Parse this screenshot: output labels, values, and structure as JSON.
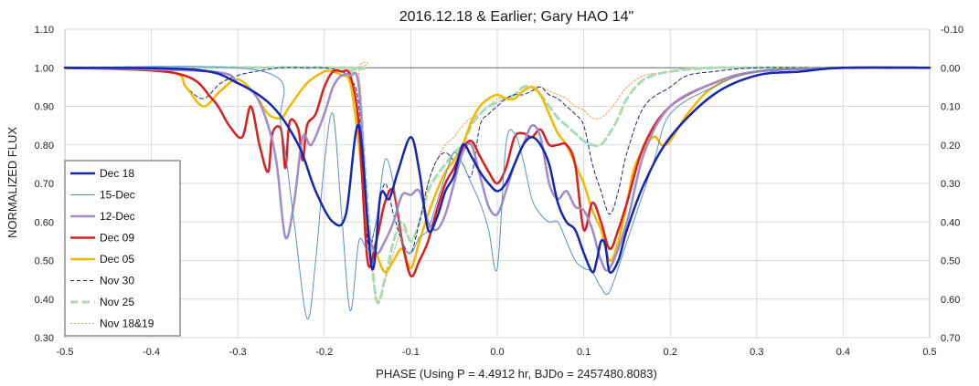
{
  "chart_data": {
    "type": "line",
    "title": "2016.12.18 & Earlier; Gary HAO 14\"",
    "xlabel": "PHASE (Using P = 4.4912 hr, BJDo = 2457480.8083)",
    "ylabel": "NORMALIZED FLUX",
    "xlim": [
      -0.5,
      0.5
    ],
    "ylim": [
      0.3,
      1.1
    ],
    "y2lim": [
      0.7,
      -0.1
    ],
    "x_ticks": [
      "-0.5",
      "-0.4",
      "-0.3",
      "-0.2",
      "-0.1",
      "0.0",
      "0.1",
      "0.2",
      "0.3",
      "0.4",
      "0.5"
    ],
    "y_ticks": [
      "0.30",
      "0.40",
      "0.50",
      "0.60",
      "0.70",
      "0.80",
      "0.90",
      "1.00",
      "1.10"
    ],
    "y2_ticks": [
      "0.70",
      "0.60",
      "0.50",
      "0.40",
      "0.30",
      "0.20",
      "0.10",
      "0.00",
      "-0.10"
    ],
    "reference_line": 1.0,
    "grid": "on",
    "legend_position": "left",
    "series": [
      {
        "name": "Dec 18",
        "color": "#1426b4",
        "width": 2.5,
        "dash": "",
        "x": [
          -0.5,
          -0.35,
          -0.3,
          -0.26,
          -0.23,
          -0.21,
          -0.19,
          -0.175,
          -0.16,
          -0.145,
          -0.135,
          -0.125,
          -0.115,
          -0.1,
          -0.09,
          -0.08,
          -0.07,
          -0.06,
          -0.05,
          -0.04,
          -0.03,
          -0.02,
          -0.01,
          0.0,
          0.01,
          0.02,
          0.03,
          0.04,
          0.05,
          0.06,
          0.07,
          0.08,
          0.09,
          0.1,
          0.11,
          0.115,
          0.12,
          0.125,
          0.13,
          0.14,
          0.15,
          0.17,
          0.2,
          0.25,
          0.3,
          0.35,
          0.4,
          0.5
        ],
        "y": [
          1.0,
          0.995,
          0.96,
          0.9,
          0.8,
          0.68,
          0.6,
          0.62,
          0.85,
          0.48,
          0.67,
          0.66,
          0.73,
          0.82,
          0.73,
          0.58,
          0.61,
          0.68,
          0.72,
          0.8,
          0.77,
          0.73,
          0.7,
          0.68,
          0.7,
          0.75,
          0.8,
          0.82,
          0.8,
          0.75,
          0.65,
          0.6,
          0.58,
          0.52,
          0.47,
          0.5,
          0.55,
          0.54,
          0.47,
          0.5,
          0.58,
          0.7,
          0.82,
          0.93,
          0.98,
          0.99,
          1.0,
          1.0
        ]
      },
      {
        "name": "15-Dec",
        "color": "#5b8fc9",
        "width": 1,
        "dash": "",
        "x": [
          -0.5,
          -0.27,
          -0.25,
          -0.235,
          -0.22,
          -0.21,
          -0.2,
          -0.19,
          -0.18,
          -0.17,
          -0.16,
          -0.15,
          -0.14,
          -0.13,
          -0.12,
          -0.11,
          -0.1,
          -0.09,
          -0.08,
          -0.07,
          -0.06,
          -0.05,
          -0.04,
          -0.03,
          -0.02,
          -0.01,
          0.0,
          0.01,
          0.02,
          0.03,
          0.04,
          0.05,
          0.06,
          0.07,
          0.08,
          0.09,
          0.1,
          0.11,
          0.12,
          0.13,
          0.15,
          0.18,
          0.2,
          0.25,
          0.3,
          0.4,
          0.5
        ],
        "y": [
          1.0,
          0.99,
          0.85,
          0.6,
          0.35,
          0.5,
          0.75,
          0.88,
          0.62,
          0.37,
          0.55,
          0.53,
          0.6,
          0.76,
          0.7,
          0.55,
          0.52,
          0.56,
          0.58,
          0.65,
          0.72,
          0.78,
          0.75,
          0.7,
          0.65,
          0.58,
          0.48,
          0.8,
          0.83,
          0.76,
          0.66,
          0.62,
          0.6,
          0.6,
          0.55,
          0.5,
          0.48,
          0.47,
          0.43,
          0.42,
          0.55,
          0.75,
          0.88,
          0.95,
          0.99,
          1.0,
          1.0
        ]
      },
      {
        "name": "12-Dec",
        "color": "#a08cc8",
        "width": 2.5,
        "dash": "",
        "x": [
          -0.5,
          -0.33,
          -0.3,
          -0.28,
          -0.265,
          -0.255,
          -0.245,
          -0.235,
          -0.225,
          -0.215,
          -0.2,
          -0.19,
          -0.18,
          -0.17,
          -0.16,
          -0.15,
          -0.14,
          -0.13,
          -0.12,
          -0.11,
          -0.1,
          -0.09,
          -0.08,
          -0.07,
          -0.06,
          -0.05,
          -0.04,
          -0.03,
          -0.02,
          -0.01,
          0.0,
          0.01,
          0.02,
          0.03,
          0.04,
          0.05,
          0.06,
          0.07,
          0.08,
          0.09,
          0.1,
          0.11,
          0.12,
          0.13,
          0.15,
          0.17,
          0.2,
          0.25,
          0.3,
          0.4,
          0.5
        ],
        "y": [
          1.0,
          0.99,
          0.96,
          0.93,
          0.85,
          0.75,
          0.56,
          0.65,
          0.82,
          0.8,
          0.88,
          0.95,
          0.98,
          0.98,
          0.95,
          0.6,
          0.52,
          0.55,
          0.6,
          0.67,
          0.67,
          0.68,
          0.6,
          0.58,
          0.62,
          0.7,
          0.78,
          0.8,
          0.72,
          0.64,
          0.62,
          0.68,
          0.75,
          0.8,
          0.85,
          0.82,
          0.7,
          0.66,
          0.68,
          0.64,
          0.63,
          0.58,
          0.5,
          0.48,
          0.6,
          0.78,
          0.9,
          0.96,
          0.99,
          1.0,
          1.0
        ]
      },
      {
        "name": "Dec 09",
        "color": "#dc1e1e",
        "width": 2.5,
        "dash": "",
        "x": [
          -0.5,
          -0.37,
          -0.33,
          -0.31,
          -0.295,
          -0.285,
          -0.275,
          -0.265,
          -0.26,
          -0.25,
          -0.245,
          -0.24,
          -0.23,
          -0.225,
          -0.22,
          -0.21,
          -0.2,
          -0.19,
          -0.18,
          -0.17,
          -0.16,
          -0.15,
          -0.14,
          -0.13,
          -0.12,
          -0.11,
          -0.1,
          -0.09,
          -0.08,
          -0.07,
          -0.06,
          -0.05,
          -0.04,
          -0.03,
          -0.02,
          -0.01,
          0.0,
          0.01,
          0.02,
          0.03,
          0.04,
          0.05,
          0.06,
          0.07,
          0.08,
          0.09,
          0.1,
          0.11,
          0.12,
          0.13,
          0.14,
          0.15,
          0.17,
          0.2,
          0.25,
          0.3,
          0.4,
          0.5
        ],
        "y": [
          1.0,
          0.985,
          0.92,
          0.85,
          0.82,
          0.9,
          0.8,
          0.73,
          0.83,
          0.84,
          0.74,
          0.86,
          0.84,
          0.76,
          0.85,
          0.88,
          0.95,
          0.99,
          0.99,
          0.98,
          0.85,
          0.5,
          0.55,
          0.65,
          0.68,
          0.55,
          0.46,
          0.5,
          0.55,
          0.63,
          0.7,
          0.74,
          0.79,
          0.81,
          0.77,
          0.73,
          0.7,
          0.74,
          0.82,
          0.83,
          0.82,
          0.84,
          0.8,
          0.8,
          0.8,
          0.75,
          0.58,
          0.65,
          0.6,
          0.53,
          0.58,
          0.65,
          0.8,
          0.9,
          0.96,
          0.99,
          1.0,
          1.0
        ]
      },
      {
        "name": "Dec 05",
        "color": "#f5b800",
        "width": 2.5,
        "dash": "",
        "x": [
          -0.5,
          -0.38,
          -0.36,
          -0.34,
          -0.32,
          -0.3,
          -0.28,
          -0.265,
          -0.25,
          -0.24,
          -0.22,
          -0.2,
          -0.19,
          -0.18,
          -0.17,
          -0.16,
          -0.15,
          -0.14,
          -0.13,
          -0.12,
          -0.11,
          -0.1,
          -0.09,
          -0.08,
          -0.07,
          -0.06,
          -0.05,
          -0.04,
          -0.03,
          -0.02,
          -0.01,
          0.0,
          0.01,
          0.02,
          0.03,
          0.04,
          0.05,
          0.06,
          0.07,
          0.08,
          0.09,
          0.1,
          0.11,
          0.12,
          0.13,
          0.14,
          0.15,
          0.16,
          0.18,
          0.19,
          0.2,
          0.22,
          0.25,
          0.3,
          0.4,
          0.5
        ],
        "y": [
          1.0,
          0.99,
          0.95,
          0.9,
          0.94,
          0.97,
          0.93,
          0.88,
          0.87,
          0.9,
          0.96,
          0.99,
          0.99,
          0.98,
          0.96,
          0.8,
          0.58,
          0.52,
          0.47,
          0.5,
          0.53,
          0.48,
          0.55,
          0.62,
          0.68,
          0.73,
          0.76,
          0.8,
          0.86,
          0.9,
          0.92,
          0.93,
          0.92,
          0.92,
          0.94,
          0.95,
          0.93,
          0.88,
          0.83,
          0.8,
          0.75,
          0.7,
          0.63,
          0.58,
          0.5,
          0.55,
          0.65,
          0.75,
          0.82,
          0.8,
          0.81,
          0.88,
          0.95,
          0.99,
          1.0,
          1.0
        ]
      },
      {
        "name": "Nov 30",
        "color": "#1a2a7a",
        "width": 1,
        "dash": "4,3",
        "x": [
          -0.5,
          -0.38,
          -0.36,
          -0.34,
          -0.32,
          -0.3,
          -0.28,
          -0.25,
          -0.22,
          -0.2,
          -0.18,
          -0.17,
          -0.16,
          -0.15,
          -0.14,
          -0.13,
          -0.12,
          -0.11,
          -0.1,
          -0.09,
          -0.08,
          -0.07,
          -0.06,
          -0.05,
          -0.04,
          -0.03,
          -0.02,
          -0.01,
          0.0,
          0.01,
          0.02,
          0.03,
          0.04,
          0.05,
          0.06,
          0.07,
          0.08,
          0.09,
          0.1,
          0.11,
          0.12,
          0.13,
          0.14,
          0.15,
          0.17,
          0.2,
          0.22,
          0.25,
          0.3,
          0.4,
          0.5
        ],
        "y": [
          1.0,
          0.99,
          0.95,
          0.92,
          0.96,
          0.98,
          0.99,
          1.0,
          1.0,
          1.0,
          0.99,
          0.97,
          0.9,
          0.55,
          0.6,
          0.7,
          0.62,
          0.55,
          0.52,
          0.6,
          0.7,
          0.76,
          0.78,
          0.76,
          0.75,
          0.72,
          0.85,
          0.88,
          0.9,
          0.92,
          0.93,
          0.93,
          0.94,
          0.95,
          0.93,
          0.92,
          0.9,
          0.88,
          0.85,
          0.75,
          0.68,
          0.62,
          0.68,
          0.78,
          0.9,
          0.95,
          0.98,
          0.99,
          1.0,
          1.0,
          1.0
        ]
      },
      {
        "name": "Nov 25",
        "color": "#a8dcb4",
        "width": 3,
        "dash": "8,5",
        "x": [
          -0.5,
          -0.18,
          -0.17,
          -0.16,
          -0.15,
          -0.14,
          -0.13,
          -0.12,
          -0.11,
          -0.1,
          -0.09,
          -0.08,
          -0.07,
          -0.06,
          -0.05,
          -0.04,
          -0.03,
          -0.02,
          -0.01,
          0.0,
          0.01,
          0.02,
          0.03,
          0.04,
          0.05,
          0.06,
          0.07,
          0.08,
          0.09,
          0.1,
          0.11,
          0.12,
          0.13,
          0.14,
          0.15,
          0.17,
          0.2,
          0.25,
          0.3,
          0.4,
          0.5
        ],
        "y": [
          1.0,
          1.0,
          0.99,
          0.95,
          0.65,
          0.4,
          0.45,
          0.55,
          0.6,
          0.55,
          0.6,
          0.68,
          0.72,
          0.75,
          0.78,
          0.8,
          0.85,
          0.88,
          0.9,
          0.91,
          0.92,
          0.93,
          0.95,
          0.95,
          0.93,
          0.9,
          0.87,
          0.85,
          0.83,
          0.81,
          0.8,
          0.8,
          0.83,
          0.87,
          0.92,
          0.97,
          0.99,
          1.0,
          1.0,
          1.0,
          1.0
        ]
      },
      {
        "name": "Nov 18&19",
        "color": "#f0a060",
        "width": 1,
        "dash": "2,2",
        "x": [
          -0.5,
          -0.18,
          -0.16,
          -0.15,
          -0.14,
          -0.13,
          -0.12,
          -0.11,
          -0.1,
          -0.09,
          -0.08,
          -0.07,
          -0.06,
          -0.05,
          -0.04,
          -0.03,
          -0.02,
          -0.01,
          0.0,
          0.01,
          0.02,
          0.03,
          0.04,
          0.05,
          0.06,
          0.07,
          0.08,
          0.09,
          0.1,
          0.11,
          0.12,
          0.13,
          0.14,
          0.15,
          0.17,
          0.2,
          0.22,
          0.25,
          0.3,
          0.4,
          0.5
        ],
        "y": [
          1.0,
          1.0,
          0.98,
          0.6,
          0.4,
          0.45,
          0.52,
          0.58,
          0.55,
          0.6,
          0.7,
          0.76,
          0.8,
          0.82,
          0.85,
          0.87,
          0.88,
          0.9,
          0.92,
          0.92,
          0.93,
          0.94,
          0.95,
          0.95,
          0.94,
          0.93,
          0.92,
          0.9,
          0.89,
          0.87,
          0.87,
          0.89,
          0.92,
          0.95,
          0.98,
          0.99,
          1.0,
          1.0,
          1.0,
          1.0,
          1.0
        ]
      }
    ]
  }
}
